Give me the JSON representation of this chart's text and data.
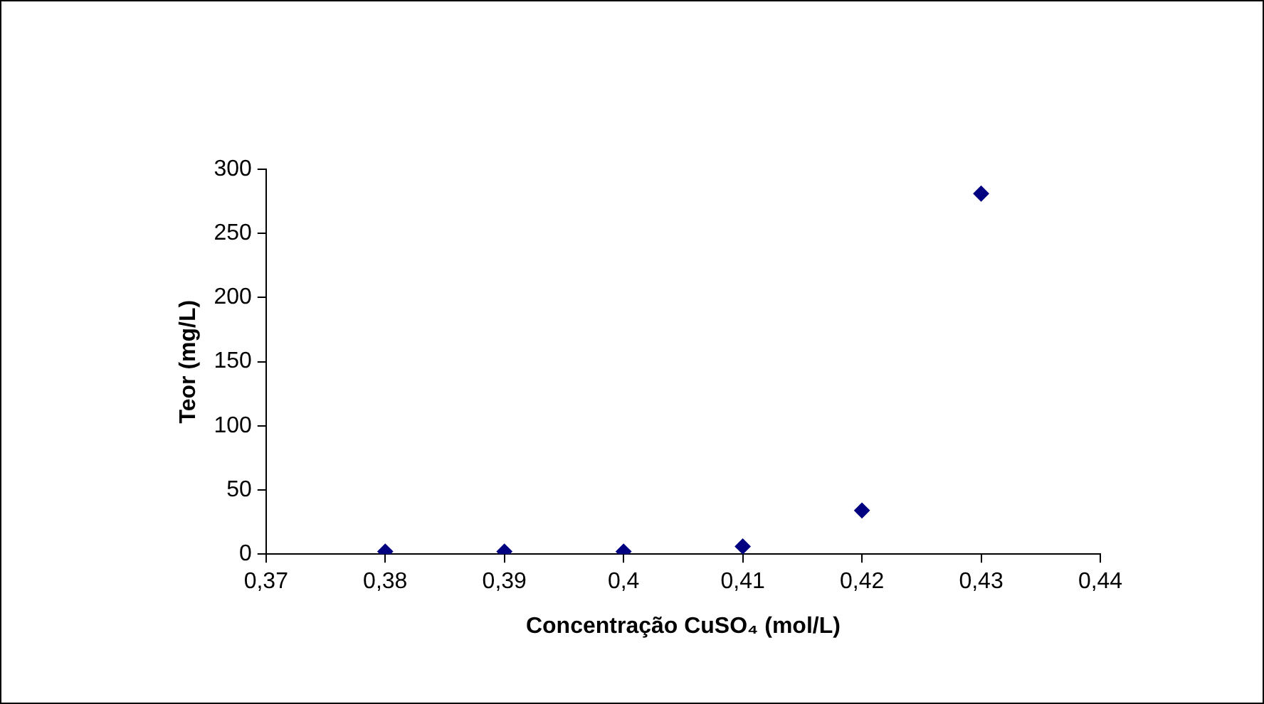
{
  "chart_data": {
    "type": "scatter",
    "xlabel": "Concentração CuSO₄ (mol/L)",
    "ylabel": "Teor (mg/L)",
    "x": [
      0.38,
      0.39,
      0.4,
      0.41,
      0.42,
      0.43
    ],
    "series": [
      {
        "color": "#000080",
        "values": [
          2,
          2,
          2,
          6,
          34,
          281
        ]
      }
    ],
    "xlim": [
      0.37,
      0.44
    ],
    "xticks": [
      {
        "value": 0.37,
        "label": "0,37"
      },
      {
        "value": 0.38,
        "label": "0,38"
      },
      {
        "value": 0.39,
        "label": "0,39"
      },
      {
        "value": 0.4,
        "label": "0,4"
      },
      {
        "value": 0.41,
        "label": "0,41"
      },
      {
        "value": 0.42,
        "label": "0,42"
      },
      {
        "value": 0.43,
        "label": "0,43"
      },
      {
        "value": 0.44,
        "label": "0,44"
      }
    ],
    "ylim": [
      0,
      300
    ],
    "yticks": [
      0,
      50,
      100,
      150,
      200,
      250,
      300
    ],
    "marker": "diamond",
    "grid": false,
    "legend": false
  }
}
